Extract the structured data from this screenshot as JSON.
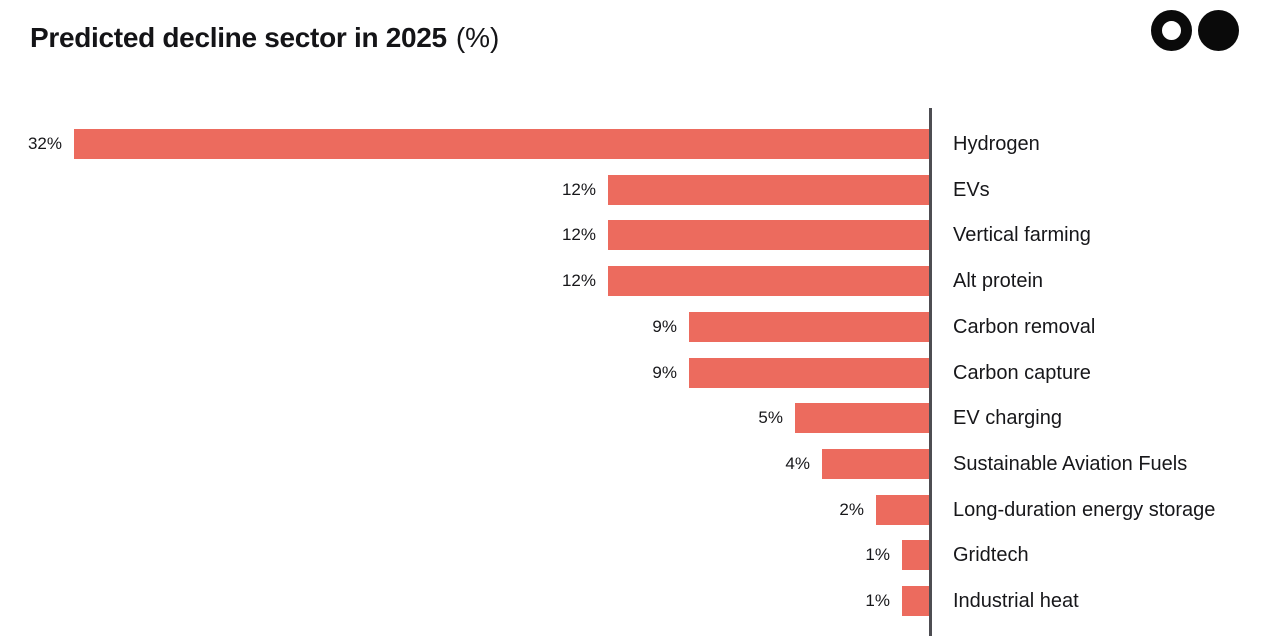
{
  "header": {
    "title": "Predicted decline sector in 2025",
    "title_unit": "(%)"
  },
  "logo": {
    "left_circle": "outlined-circle",
    "right_circle": "filled-circle",
    "color": "#0A0A0A"
  },
  "chart_data": {
    "type": "bar",
    "orientation": "horizontal",
    "bars_aligned": "right-against-axis",
    "title": "Predicted decline sector in 2025 (%)",
    "categories": [
      "Hydrogen",
      "EVs",
      "Vertical farming",
      "Alt protein",
      "Carbon removal",
      "Carbon capture",
      "EV charging",
      "Sustainable Aviation Fuels",
      "Long-duration energy storage",
      "Gridtech",
      "Industrial heat"
    ],
    "values": [
      32,
      12,
      12,
      12,
      9,
      9,
      5,
      4,
      2,
      1,
      1
    ],
    "value_labels": [
      "32%",
      "12%",
      "12%",
      "12%",
      "9%",
      "9%",
      "5%",
      "4%",
      "2%",
      "1%",
      "1%"
    ],
    "unit": "%",
    "xlim": [
      0,
      32
    ],
    "grid": false,
    "legend": "none",
    "value_label_position": "left-of-bar",
    "category_label_position": "right-of-axis",
    "bar_color": "#EC6B5E",
    "axis_color": "#4D4D52",
    "text_color": "#17171A"
  }
}
